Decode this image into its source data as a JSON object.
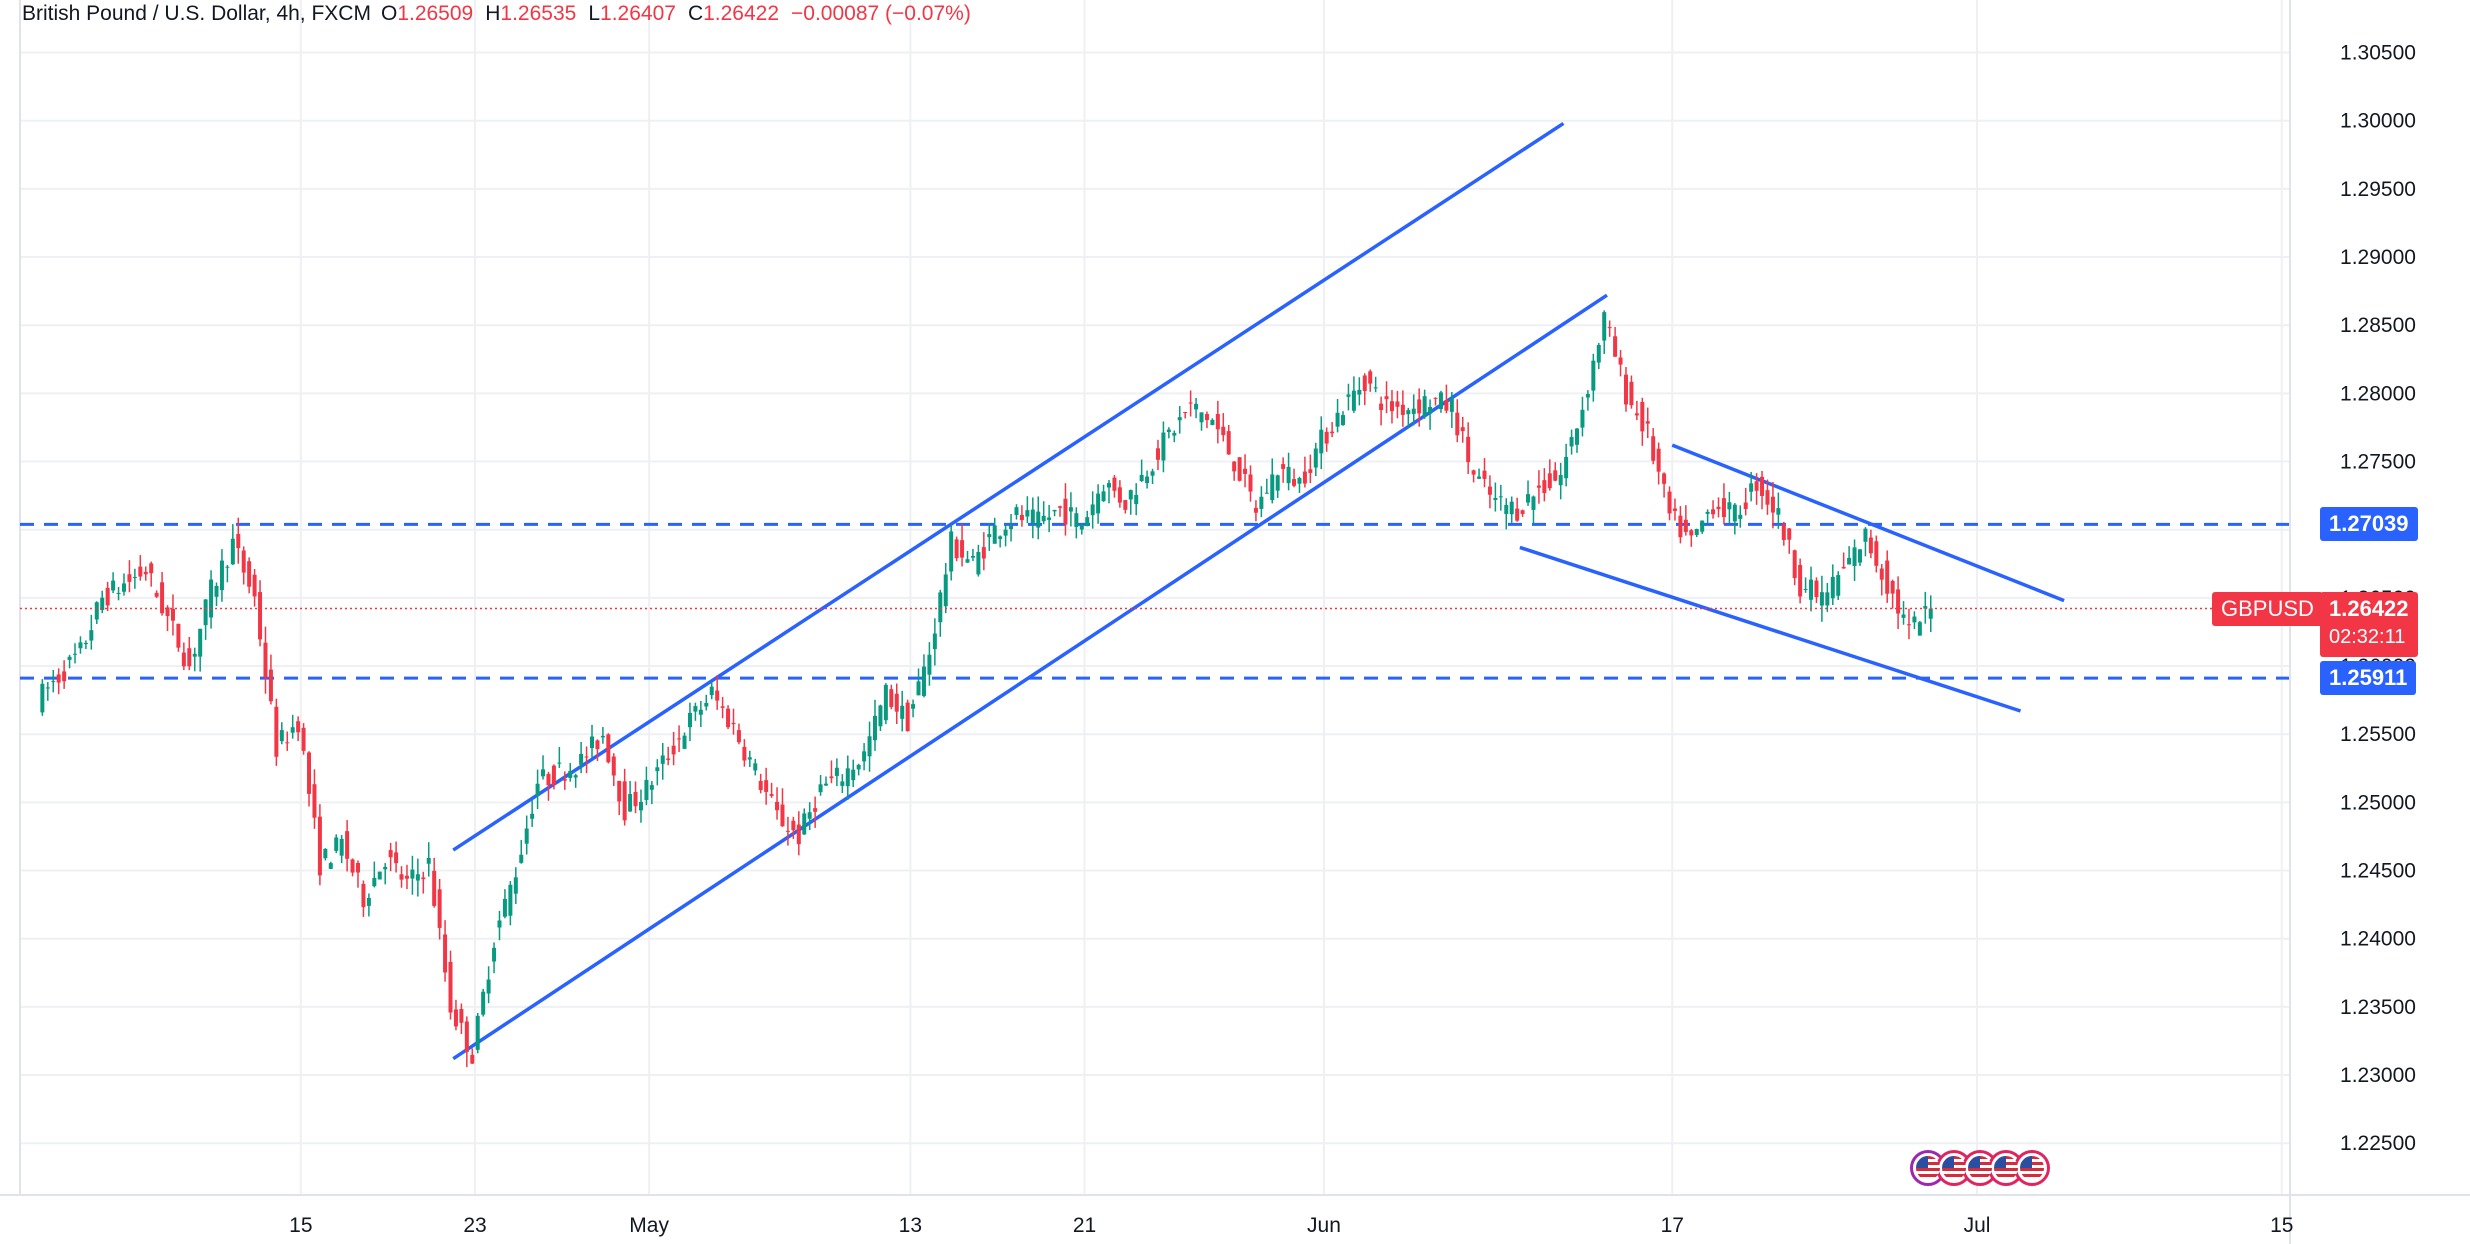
{
  "header": {
    "symbol": "British Pound / U.S. Dollar, 4h, FXCM",
    "open_label": "O",
    "open": "1.26509",
    "high_label": "H",
    "high": "1.26535",
    "low_label": "L",
    "low": "1.26407",
    "close_label": "C",
    "close": "1.26422",
    "change": "−0.00087 (−0.07%)"
  },
  "colors": {
    "up": "#089981",
    "down": "#f23645",
    "trendline": "#2962ff",
    "grid": "#eef0f3",
    "current_price": "#f23645"
  },
  "badges": {
    "resistance": "1.27039",
    "support": "1.25911",
    "ticker": "GBPUSD",
    "last_price": "1.26422",
    "countdown": "02:32:11"
  },
  "chart_data": {
    "type": "candlestick",
    "title": "British Pound / U.S. Dollar, 4h, FXCM",
    "y_ticks": [
      "1.22500",
      "1.23000",
      "1.23500",
      "1.24000",
      "1.24500",
      "1.25000",
      "1.25500",
      "1.26000",
      "1.26500",
      "1.27000",
      "1.27500",
      "1.28000",
      "1.28500",
      "1.29000",
      "1.29500",
      "1.30000",
      "1.30500"
    ],
    "ylim": [
      1.2212,
      1.3068
    ],
    "x_ticks": [
      "15",
      "23",
      "May",
      "13",
      "21",
      "Jun",
      "17",
      "Jul",
      "15"
    ],
    "x_tick_dates": [
      "2024-04-15",
      "2024-04-23",
      "2024-05-01",
      "2024-05-13",
      "2024-05-21",
      "2024-06-01",
      "2024-06-17",
      "2024-07-01",
      "2024-07-15"
    ],
    "horizontal_levels": [
      {
        "price": 1.27039,
        "style": "dashed"
      },
      {
        "price": 1.25911,
        "style": "dashed"
      }
    ],
    "last_price": 1.26422,
    "trendlines": [
      {
        "from": [
          "2024-04-22",
          1.2465
        ],
        "to": [
          "2024-06-12",
          1.2998
        ]
      },
      {
        "from": [
          "2024-04-22",
          1.2312
        ],
        "to": [
          "2024-06-14",
          1.2872
        ]
      },
      {
        "from": [
          "2024-06-17",
          1.2762
        ],
        "to": [
          "2024-07-05",
          1.2648
        ]
      },
      {
        "from": [
          "2024-06-10",
          1.2687
        ],
        "to": [
          "2024-07-03",
          1.2567
        ]
      }
    ],
    "price_path": [
      [
        "2024-04-03",
        1.2575
      ],
      [
        "2024-04-05",
        1.261
      ],
      [
        "2024-04-06",
        1.265
      ],
      [
        "2024-04-08",
        1.267
      ],
      [
        "2024-04-09",
        1.2635
      ],
      [
        "2024-04-10",
        1.26
      ],
      [
        "2024-04-11",
        1.2655
      ],
      [
        "2024-04-12",
        1.269
      ],
      [
        "2024-04-13",
        1.265
      ],
      [
        "2024-04-14",
        1.254
      ],
      [
        "2024-04-15",
        1.256
      ],
      [
        "2024-04-16",
        1.2455
      ],
      [
        "2024-04-17",
        1.247
      ],
      [
        "2024-04-18",
        1.243
      ],
      [
        "2024-04-19",
        1.246
      ],
      [
        "2024-04-20",
        1.244
      ],
      [
        "2024-04-21",
        1.2455
      ],
      [
        "2024-04-22",
        1.235
      ],
      [
        "2024-04-23",
        1.2315
      ],
      [
        "2024-04-24",
        1.24
      ],
      [
        "2024-04-25",
        1.245
      ],
      [
        "2024-04-26",
        1.2515
      ],
      [
        "2024-04-28",
        1.253
      ],
      [
        "2024-04-29",
        1.255
      ],
      [
        "2024-04-30",
        1.2495
      ],
      [
        "2024-05-01",
        1.251
      ],
      [
        "2024-05-02",
        1.2535
      ],
      [
        "2024-05-03",
        1.256
      ],
      [
        "2024-05-04",
        1.258
      ],
      [
        "2024-05-05",
        1.2555
      ],
      [
        "2024-05-07",
        1.249
      ],
      [
        "2024-05-08",
        1.2475
      ],
      [
        "2024-05-09",
        1.251
      ],
      [
        "2024-05-10",
        1.252
      ],
      [
        "2024-05-11",
        1.2535
      ],
      [
        "2024-05-12",
        1.258
      ],
      [
        "2024-05-13",
        1.256
      ],
      [
        "2024-05-14",
        1.261
      ],
      [
        "2024-05-15",
        1.269
      ],
      [
        "2024-05-16",
        1.2675
      ],
      [
        "2024-05-17",
        1.27
      ],
      [
        "2024-05-18",
        1.271
      ],
      [
        "2024-05-19",
        1.2705
      ],
      [
        "2024-05-20",
        1.2715
      ],
      [
        "2024-05-21",
        1.2705
      ],
      [
        "2024-05-22",
        1.2735
      ],
      [
        "2024-05-23",
        1.272
      ],
      [
        "2024-05-24",
        1.2745
      ],
      [
        "2024-05-25",
        1.277
      ],
      [
        "2024-05-26",
        1.279
      ],
      [
        "2024-05-27",
        1.278
      ],
      [
        "2024-05-28",
        1.275
      ],
      [
        "2024-05-29",
        1.2715
      ],
      [
        "2024-05-30",
        1.2745
      ],
      [
        "2024-05-31",
        1.2735
      ],
      [
        "2024-06-01",
        1.2765
      ],
      [
        "2024-06-02",
        1.279
      ],
      [
        "2024-06-03",
        1.281
      ],
      [
        "2024-06-04",
        1.279
      ],
      [
        "2024-06-05",
        1.279
      ],
      [
        "2024-06-06",
        1.2795
      ],
      [
        "2024-06-07",
        1.279
      ],
      [
        "2024-06-08",
        1.274
      ],
      [
        "2024-06-09",
        1.272
      ],
      [
        "2024-06-10",
        1.2715
      ],
      [
        "2024-06-11",
        1.273
      ],
      [
        "2024-06-12",
        1.274
      ],
      [
        "2024-06-13",
        1.279
      ],
      [
        "2024-06-14",
        1.2855
      ],
      [
        "2024-06-15",
        1.28
      ],
      [
        "2024-06-16",
        1.277
      ],
      [
        "2024-06-17",
        1.271
      ],
      [
        "2024-06-18",
        1.269
      ],
      [
        "2024-06-19",
        1.272
      ],
      [
        "2024-06-20",
        1.271
      ],
      [
        "2024-06-21",
        1.2735
      ],
      [
        "2024-06-22",
        1.271
      ],
      [
        "2024-06-23",
        1.266
      ],
      [
        "2024-06-24",
        1.265
      ],
      [
        "2024-06-25",
        1.267
      ],
      [
        "2024-06-26",
        1.2695
      ],
      [
        "2024-06-27",
        1.266
      ],
      [
        "2024-06-28",
        1.2625
      ],
      [
        "2024-06-29",
        1.2642
      ]
    ]
  }
}
